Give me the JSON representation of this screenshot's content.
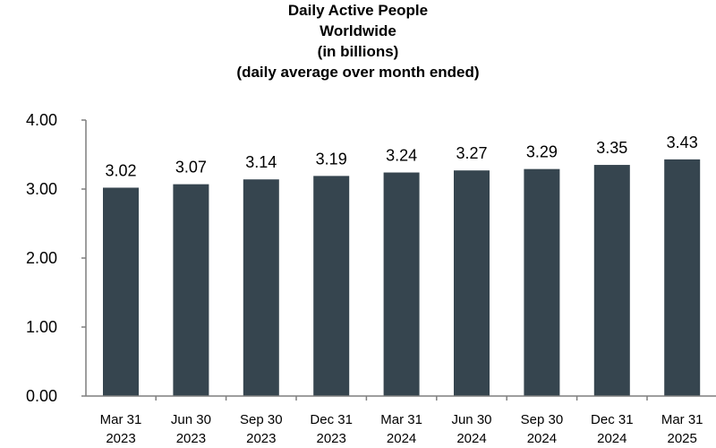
{
  "chart_data": {
    "type": "bar",
    "title_lines": [
      "Daily Active People",
      "Worldwide",
      "(in billions)",
      "(daily average over month ended)"
    ],
    "categories": [
      [
        "Mar 31",
        "2023"
      ],
      [
        "Jun 30",
        "2023"
      ],
      [
        "Sep 30",
        "2023"
      ],
      [
        "Dec 31",
        "2023"
      ],
      [
        "Mar 31",
        "2024"
      ],
      [
        "Jun 30",
        "2024"
      ],
      [
        "Sep 30",
        "2024"
      ],
      [
        "Dec 31",
        "2024"
      ],
      [
        "Mar 31",
        "2025"
      ]
    ],
    "values": [
      3.02,
      3.07,
      3.14,
      3.19,
      3.24,
      3.27,
      3.29,
      3.35,
      3.43
    ],
    "data_labels": [
      "3.02",
      "3.07",
      "3.14",
      "3.19",
      "3.24",
      "3.27",
      "3.29",
      "3.35",
      "3.43"
    ],
    "y_ticks": [
      "0.00",
      "1.00",
      "2.00",
      "3.00",
      "4.00"
    ],
    "ylim": [
      0,
      4
    ],
    "xlabel": "",
    "ylabel": "",
    "grid": false,
    "legend": "none",
    "bar_color": "#36454f",
    "axis_color": "#7f7f7f"
  }
}
